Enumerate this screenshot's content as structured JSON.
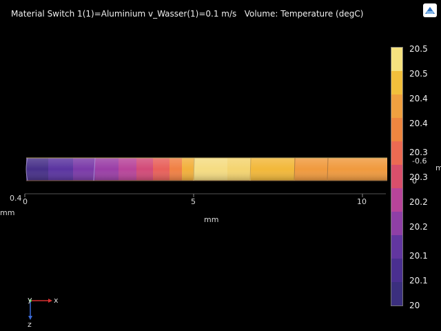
{
  "header": {
    "title": "Material Switch 1(1)=Aluminium v_Wasser(1)=0.1 m/s   Volume: Temperature (degC)"
  },
  "toolbar": {
    "zoom_icon": "zoom-extents-icon"
  },
  "axes": {
    "x_unit": "mm",
    "x_ticks": [
      "0",
      "5",
      "10"
    ],
    "left_tick": "0.4",
    "left_unit": "mm",
    "right_tick_top": "-0.6",
    "right_tick_bottom": "0",
    "right_unit": "m"
  },
  "colorbar": {
    "ticks": [
      "20.5",
      "20.5",
      "20.4",
      "20.4",
      "20.3",
      "20.3",
      "20.2",
      "20.2",
      "20.1",
      "20.1",
      "20"
    ],
    "colors": [
      "#f6e27f",
      "#f2bf3c",
      "#f0a040",
      "#ee8640",
      "#ec6a52",
      "#d94f6b",
      "#b8449a",
      "#8f3fa6",
      "#6236a0",
      "#4a2f90",
      "#3b2f7e"
    ]
  },
  "triad": {
    "x": "x",
    "y": "y",
    "z": "z"
  }
}
